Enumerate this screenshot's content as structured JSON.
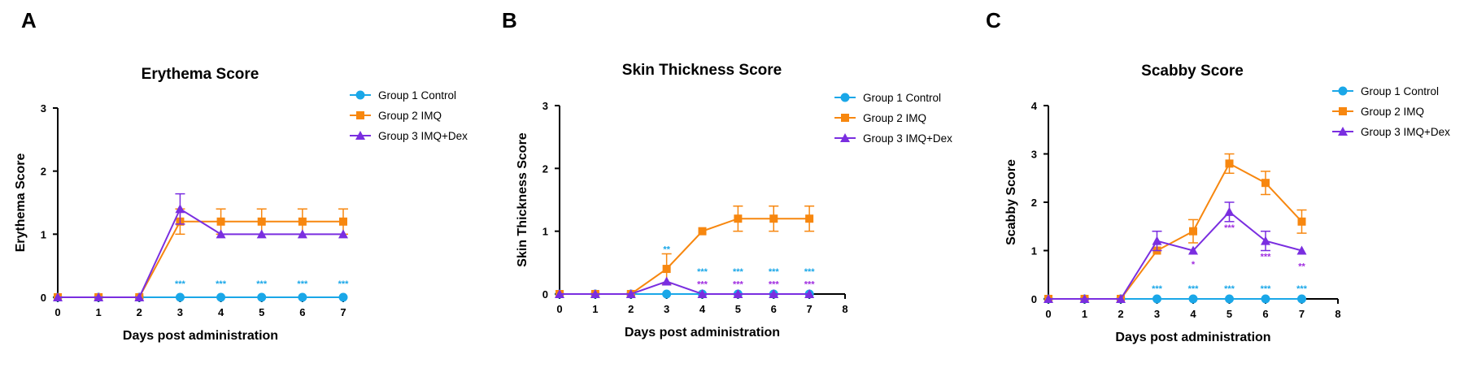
{
  "figure": {
    "panels": [
      "A",
      "B",
      "C"
    ]
  },
  "colors": {
    "group1": "#1aa7e8",
    "group2": "#f7870f",
    "group3": "#7a2ee0",
    "axis": "#000000"
  },
  "chart_data": [
    {
      "type": "line",
      "panel_label": "A",
      "title": "Erythema Score",
      "xlabel": "Days post administration",
      "ylabel": "Erythema Score",
      "xlim": [
        0,
        7
      ],
      "ylim": [
        0,
        3
      ],
      "x_ticks": [
        0,
        1,
        2,
        3,
        4,
        5,
        6,
        7
      ],
      "y_ticks": [
        0,
        1,
        2,
        3
      ],
      "legend_position": "top-right",
      "series": [
        {
          "name": "Group 1 Control",
          "marker": "circle",
          "color": "#1aa7e8",
          "x": [
            0,
            1,
            2,
            3,
            4,
            5,
            6,
            7
          ],
          "y": [
            0,
            0,
            0,
            0,
            0,
            0,
            0,
            0
          ],
          "err": [
            0,
            0,
            0,
            0,
            0,
            0,
            0,
            0
          ]
        },
        {
          "name": "Group 2 IMQ",
          "marker": "square",
          "color": "#f7870f",
          "x": [
            0,
            1,
            2,
            3,
            4,
            5,
            6,
            7
          ],
          "y": [
            0,
            0,
            0,
            1.2,
            1.2,
            1.2,
            1.2,
            1.2
          ],
          "err": [
            0,
            0,
            0,
            0.2,
            0.2,
            0.2,
            0.2,
            0.2
          ]
        },
        {
          "name": "Group 3 IMQ+Dex",
          "marker": "triangle",
          "color": "#7a2ee0",
          "x": [
            0,
            1,
            2,
            3,
            4,
            5,
            6,
            7
          ],
          "y": [
            0,
            0,
            0,
            1.4,
            1.0,
            1.0,
            1.0,
            1.0
          ],
          "err": [
            0,
            0,
            0,
            0.24,
            0,
            0,
            0,
            0
          ]
        }
      ],
      "annotations": [
        {
          "x": 3,
          "y": 0.22,
          "text": "***",
          "color": "#1aa7e8"
        },
        {
          "x": 4,
          "y": 0.22,
          "text": "***",
          "color": "#1aa7e8"
        },
        {
          "x": 5,
          "y": 0.22,
          "text": "***",
          "color": "#1aa7e8"
        },
        {
          "x": 6,
          "y": 0.22,
          "text": "***",
          "color": "#1aa7e8"
        },
        {
          "x": 7,
          "y": 0.22,
          "text": "***",
          "color": "#1aa7e8"
        }
      ]
    },
    {
      "type": "line",
      "panel_label": "B",
      "title": "Skin Thickness Score",
      "xlabel": "Days post administration",
      "ylabel": "Skin Thickness Score",
      "xlim": [
        0,
        8
      ],
      "ylim": [
        0,
        3
      ],
      "x_ticks": [
        0,
        1,
        2,
        3,
        4,
        5,
        6,
        7,
        8
      ],
      "y_ticks": [
        0,
        1,
        2,
        3
      ],
      "legend_position": "top-right",
      "series": [
        {
          "name": "Group 1 Control",
          "marker": "circle",
          "color": "#1aa7e8",
          "x": [
            0,
            1,
            2,
            3,
            4,
            5,
            6,
            7
          ],
          "y": [
            0,
            0,
            0,
            0,
            0,
            0,
            0,
            0
          ],
          "err": [
            0,
            0,
            0,
            0,
            0,
            0,
            0,
            0
          ]
        },
        {
          "name": "Group 2 IMQ",
          "marker": "square",
          "color": "#f7870f",
          "x": [
            0,
            1,
            2,
            3,
            4,
            5,
            6,
            7
          ],
          "y": [
            0,
            0,
            0,
            0.4,
            1.0,
            1.2,
            1.2,
            1.2
          ],
          "err": [
            0,
            0,
            0,
            0.24,
            0,
            0.2,
            0.2,
            0.2
          ]
        },
        {
          "name": "Group 3 IMQ+Dex",
          "marker": "triangle",
          "color": "#7a2ee0",
          "x": [
            0,
            1,
            2,
            3,
            4,
            5,
            6,
            7
          ],
          "y": [
            0,
            0,
            0,
            0.2,
            0,
            0,
            0,
            0
          ],
          "err": [
            0,
            0,
            0,
            0,
            0,
            0,
            0,
            0
          ]
        }
      ],
      "annotations": [
        {
          "x": 3,
          "y": 0.72,
          "text": "**",
          "color": "#1aa7e8"
        },
        {
          "x": 4,
          "y": 0.36,
          "text": "***",
          "color": "#1aa7e8"
        },
        {
          "x": 5,
          "y": 0.36,
          "text": "***",
          "color": "#1aa7e8"
        },
        {
          "x": 6,
          "y": 0.36,
          "text": "***",
          "color": "#1aa7e8"
        },
        {
          "x": 7,
          "y": 0.36,
          "text": "***",
          "color": "#1aa7e8"
        },
        {
          "x": 4,
          "y": 0.16,
          "text": "***",
          "color": "#a02de0"
        },
        {
          "x": 5,
          "y": 0.16,
          "text": "***",
          "color": "#a02de0"
        },
        {
          "x": 6,
          "y": 0.16,
          "text": "***",
          "color": "#a02de0"
        },
        {
          "x": 7,
          "y": 0.16,
          "text": "***",
          "color": "#a02de0"
        }
      ]
    },
    {
      "type": "line",
      "panel_label": "C",
      "title": "Scabby Score",
      "xlabel": "Days post administration",
      "ylabel": "Scabby Score",
      "xlim": [
        0,
        8
      ],
      "ylim": [
        0,
        4
      ],
      "x_ticks": [
        0,
        1,
        2,
        3,
        4,
        5,
        6,
        7,
        8
      ],
      "y_ticks": [
        0,
        1,
        2,
        3,
        4
      ],
      "legend_position": "top-right",
      "series": [
        {
          "name": "Group 1 Control",
          "marker": "circle",
          "color": "#1aa7e8",
          "x": [
            0,
            1,
            2,
            3,
            4,
            5,
            6,
            7
          ],
          "y": [
            0,
            0,
            0,
            0,
            0,
            0,
            0,
            0
          ],
          "err": [
            0,
            0,
            0,
            0,
            0,
            0,
            0,
            0
          ]
        },
        {
          "name": "Group 2 IMQ",
          "marker": "square",
          "color": "#f7870f",
          "x": [
            0,
            1,
            2,
            3,
            4,
            5,
            6,
            7
          ],
          "y": [
            0,
            0,
            0,
            1.0,
            1.4,
            2.8,
            2.4,
            1.6
          ],
          "err": [
            0,
            0,
            0,
            0,
            0.24,
            0.2,
            0.24,
            0.24
          ]
        },
        {
          "name": "Group 3 IMQ+Dex",
          "marker": "triangle",
          "color": "#7a2ee0",
          "x": [
            0,
            1,
            2,
            3,
            4,
            5,
            6,
            7
          ],
          "y": [
            0,
            0,
            0,
            1.2,
            1.0,
            1.8,
            1.2,
            1.0
          ],
          "err": [
            0,
            0,
            0,
            0.2,
            0,
            0.2,
            0.2,
            0
          ]
        }
      ],
      "annotations": [
        {
          "x": 4,
          "y": 0.72,
          "text": "*",
          "color": "#a02de0"
        },
        {
          "x": 5,
          "y": 1.48,
          "text": "***",
          "color": "#a02de0"
        },
        {
          "x": 6,
          "y": 0.88,
          "text": "***",
          "color": "#a02de0"
        },
        {
          "x": 7,
          "y": 0.68,
          "text": "**",
          "color": "#a02de0"
        },
        {
          "x": 3,
          "y": 0.22,
          "text": "***",
          "color": "#1aa7e8"
        },
        {
          "x": 4,
          "y": 0.22,
          "text": "***",
          "color": "#1aa7e8"
        },
        {
          "x": 5,
          "y": 0.22,
          "text": "***",
          "color": "#1aa7e8"
        },
        {
          "x": 6,
          "y": 0.22,
          "text": "***",
          "color": "#1aa7e8"
        },
        {
          "x": 7,
          "y": 0.22,
          "text": "***",
          "color": "#1aa7e8"
        }
      ]
    }
  ]
}
